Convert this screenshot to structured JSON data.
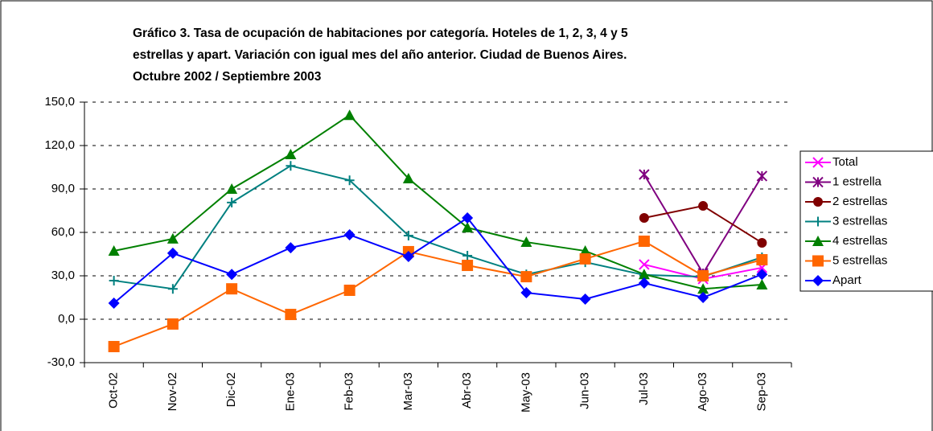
{
  "chart_data": {
    "type": "line",
    "title": [
      "Gráfico 3. Tasa de ocupación de habitaciones por categoría. Hoteles de 1, 2, 3, 4 y 5",
      "estrellas y apart. Variación con igual mes del año anterior. Ciudad de Buenos Aires.",
      "Octubre 2002 / Septiembre 2003"
    ],
    "categories": [
      "Oct-02",
      "Nov-02",
      "Dic-02",
      "Ene-03",
      "Feb-03",
      "Mar-03",
      "Abr-03",
      "May-03",
      "Jun-03",
      "Jul-03",
      "Ago-03",
      "Sep-03"
    ],
    "ylim": [
      -30,
      150
    ],
    "yticks": [
      {
        "value": -30,
        "label": "-30,0"
      },
      {
        "value": 0,
        "label": "0,0"
      },
      {
        "value": 30,
        "label": "30,0"
      },
      {
        "value": 60,
        "label": "60,0"
      },
      {
        "value": 90,
        "label": "90,0"
      },
      {
        "value": 120,
        "label": "120,0"
      },
      {
        "value": 150,
        "label": "150,0"
      }
    ],
    "grid": true,
    "legend": "right",
    "series": [
      {
        "name": "Total",
        "color": "#ff00ff",
        "marker": "x",
        "values": [
          null,
          null,
          null,
          null,
          null,
          null,
          null,
          null,
          null,
          37.8,
          27.8,
          35.6
        ]
      },
      {
        "name": "1 estrella",
        "color": "#800080",
        "marker": "star",
        "values": [
          null,
          null,
          null,
          null,
          null,
          null,
          null,
          null,
          null,
          100,
          31.7,
          98.9
        ]
      },
      {
        "name": "2 estrellas",
        "color": "#800000",
        "marker": "circle",
        "values": [
          null,
          null,
          null,
          null,
          null,
          null,
          null,
          null,
          null,
          70,
          78.3,
          52.8
        ]
      },
      {
        "name": "3 estrellas",
        "color": "#008080",
        "marker": "plus",
        "values": [
          26.7,
          21,
          80.6,
          106,
          96,
          57.8,
          43.9,
          31,
          39.4,
          30.6,
          29.4,
          42.8
        ]
      },
      {
        "name": "4 estrellas",
        "color": "#008000",
        "marker": "triangle",
        "values": [
          47.2,
          55.6,
          90,
          113.9,
          141,
          97.2,
          63.3,
          53.3,
          47.2,
          31,
          21,
          23.9
        ]
      },
      {
        "name": "5 estrellas",
        "color": "#ff6600",
        "marker": "square",
        "values": [
          -18.9,
          -3.3,
          21,
          3.3,
          20,
          46.7,
          37.2,
          29.4,
          41.7,
          53.9,
          30,
          41.1
        ]
      },
      {
        "name": "Apart",
        "color": "#0000ff",
        "marker": "diamond",
        "values": [
          11.1,
          45.6,
          31,
          49.4,
          58.3,
          43.3,
          70,
          18.3,
          13.9,
          25,
          15,
          31
        ]
      }
    ]
  }
}
